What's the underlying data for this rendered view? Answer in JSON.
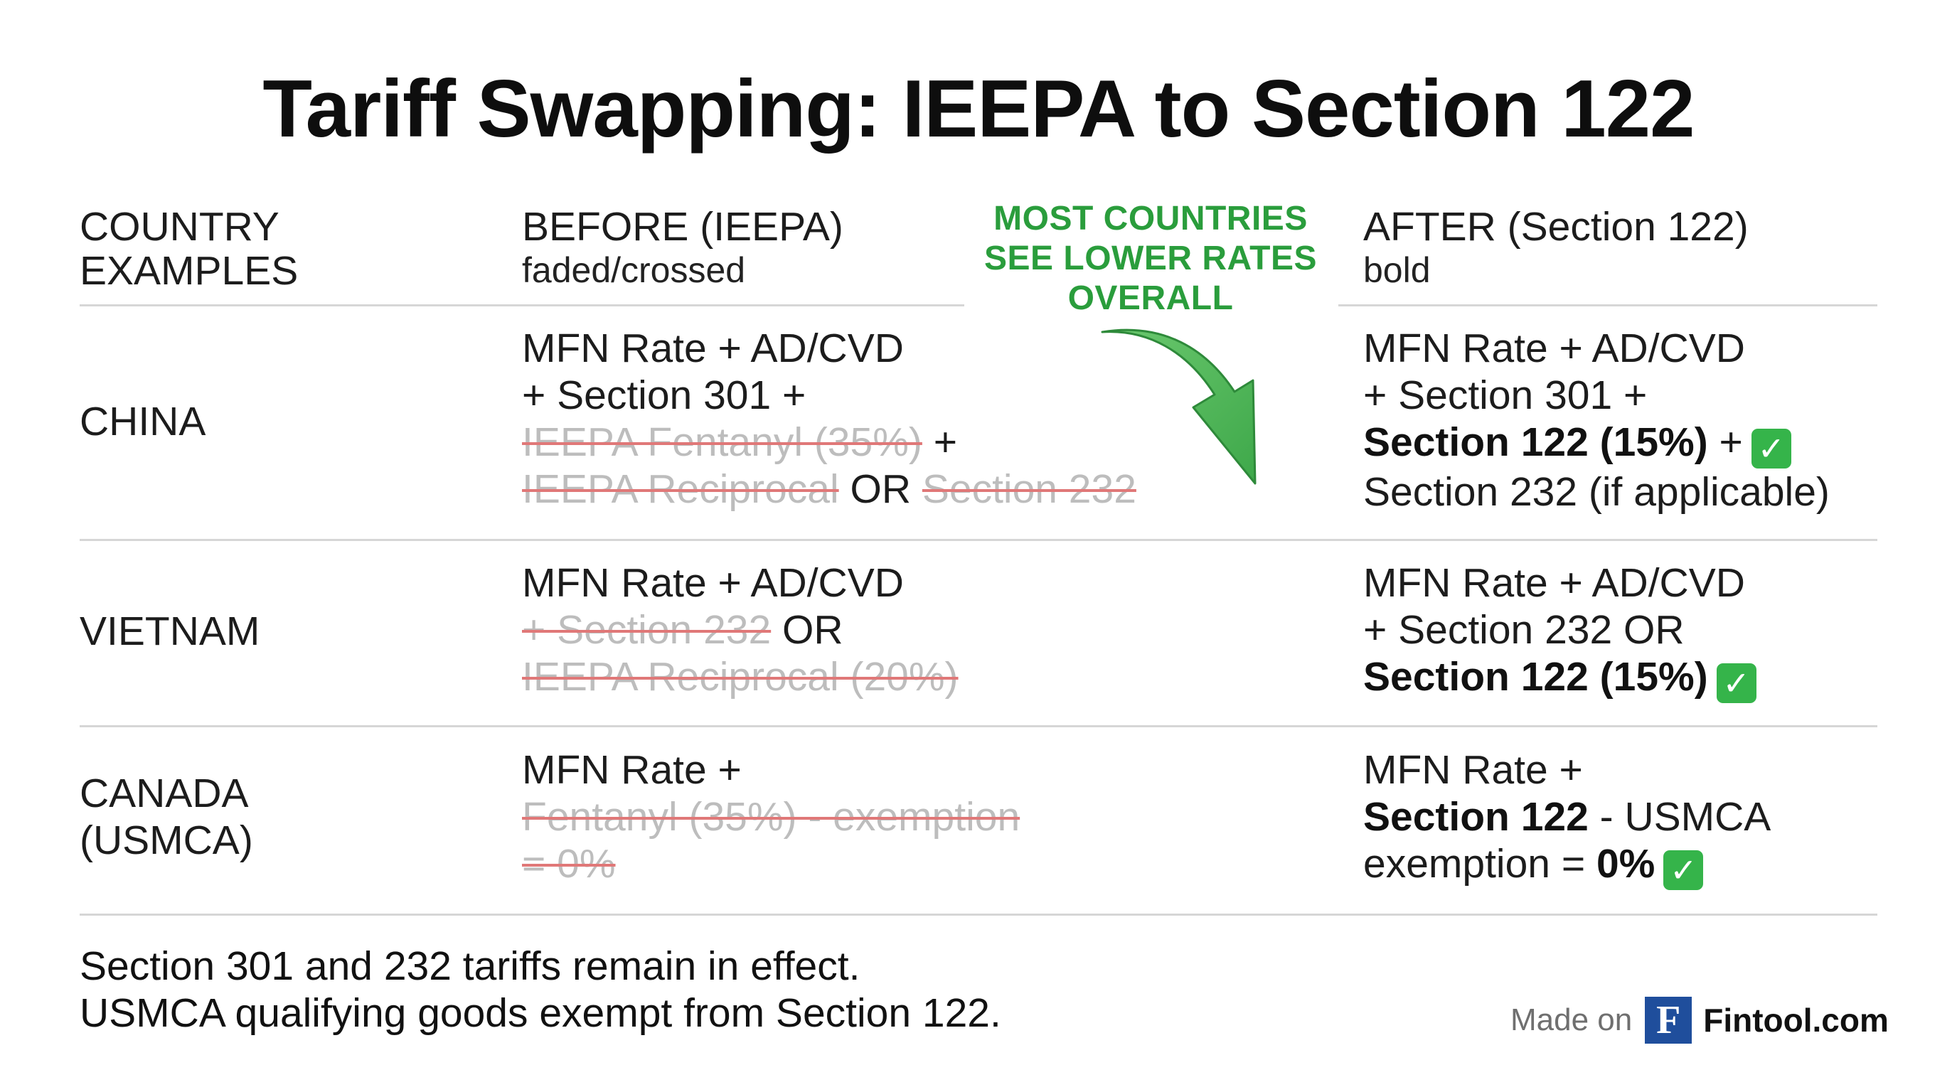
{
  "title": "Tariff Swapping: IEEPA to Section 122",
  "headers": {
    "country": [
      "COUNTRY",
      "EXAMPLES"
    ],
    "before": {
      "label": "BEFORE (IEEPA)",
      "sub": "faded/crossed"
    },
    "after": {
      "label": "AFTER (Section 122)",
      "sub": "bold"
    }
  },
  "callout": [
    "MOST COUNTRIES",
    "SEE LOWER RATES",
    "OVERALL"
  ],
  "callout_color": "#2a9d3c",
  "rows": [
    {
      "country": [
        "CHINA"
      ],
      "before": [
        [
          {
            "t": "MFN Rate + AD/CVD"
          }
        ],
        [
          {
            "t": "+ Section 301 +"
          }
        ],
        [
          {
            "t": "IEEPA Fentanyl (35%)",
            "s": "struck"
          },
          {
            "t": " +"
          }
        ],
        [
          {
            "t": "IEEPA Reciprocal",
            "s": "struck"
          },
          {
            "t": " OR "
          },
          {
            "t": "Section 232",
            "s": "struck"
          }
        ]
      ],
      "after": [
        [
          {
            "t": "MFN Rate + AD/CVD"
          }
        ],
        [
          {
            "t": "+ Section 301 +"
          }
        ],
        [
          {
            "t": "Section 122 (15%)",
            "s": "bold"
          },
          {
            "t": " +"
          },
          {
            "check": true
          }
        ],
        [
          {
            "t": "Section 232 (if applicable)"
          }
        ]
      ]
    },
    {
      "country": [
        "VIETNAM"
      ],
      "before": [
        [
          {
            "t": "MFN Rate + AD/CVD"
          }
        ],
        [
          {
            "t": "+ Section 232",
            "s": "struck"
          },
          {
            "t": " OR"
          }
        ],
        [
          {
            "t": "IEEPA Reciprocal (20%)",
            "s": "struck"
          }
        ]
      ],
      "after": [
        [
          {
            "t": "MFN Rate + AD/CVD"
          }
        ],
        [
          {
            "t": "+ Section 232 OR"
          }
        ],
        [
          {
            "t": "Section 122 (15%)",
            "s": "bold"
          },
          {
            "check": true
          }
        ]
      ]
    },
    {
      "country": [
        "CANADA",
        "(USMCA)"
      ],
      "before": [
        [
          {
            "t": "MFN Rate +"
          }
        ],
        [
          {
            "t": "Fentanyl (35%) - exemption",
            "s": "struck"
          }
        ],
        [
          {
            "t": "= 0%",
            "s": "struck"
          }
        ]
      ],
      "after": [
        [
          {
            "t": "MFN Rate +"
          }
        ],
        [
          {
            "t": "Section 122",
            "s": "bold"
          },
          {
            "t": " - USMCA"
          }
        ],
        [
          {
            "t": "exemption = "
          },
          {
            "t": "0%",
            "s": "bold"
          },
          {
            "check": true
          }
        ]
      ]
    }
  ],
  "check_icon": "white-heavy-check-mark-icon",
  "footnote": [
    "Section 301 and 232 tariffs remain in effect.",
    "USMCA qualifying goods exempt from Section 122."
  ],
  "credit": {
    "prefix": "Made on",
    "logo_letter": "F",
    "brand": "Fintool.com"
  }
}
